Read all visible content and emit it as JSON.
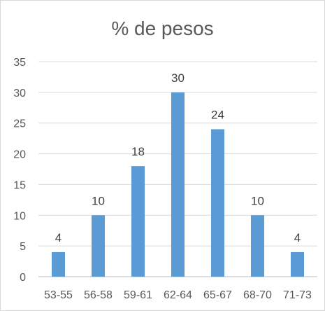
{
  "chart_data": {
    "type": "bar",
    "title": "% de pesos",
    "xlabel": "",
    "ylabel": "",
    "categories": [
      "53-55",
      "56-58",
      "59-61",
      "62-64",
      "65-67",
      "68-70",
      "71-73"
    ],
    "values": [
      4,
      10,
      18,
      30,
      24,
      10,
      4
    ],
    "ylim": [
      0,
      35
    ],
    "yticks": [
      0,
      5,
      10,
      15,
      20,
      25,
      30,
      35
    ],
    "grid": true,
    "data_labels": true,
    "legend": "none",
    "colors": {
      "bar": "#5b9bd5",
      "grid": "#d9d9d9",
      "axis": "#bfbfbf",
      "text": "#595959"
    }
  }
}
